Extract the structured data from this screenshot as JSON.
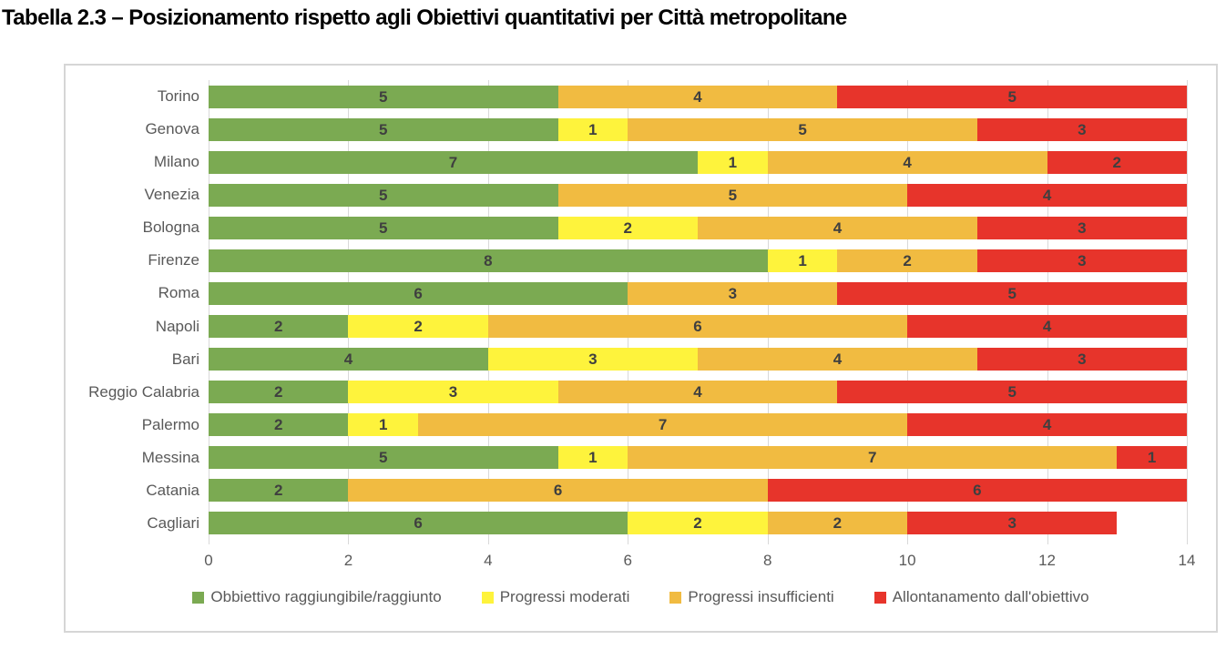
{
  "title": "Tabella 2.3 – Posizionamento rispetto agli Obiettivi quantitativi per Città metropolitane",
  "colors": {
    "green": "#7BAA52",
    "yellow": "#FEF33C",
    "orange": "#F1BB41",
    "red": "#E7342B",
    "grid": "#D9D9D9",
    "box_border": "#D6D6D6",
    "axis_text": "#595959",
    "bar_label": "#3F3F3F"
  },
  "chart_data": {
    "type": "bar",
    "orientation": "horizontal-stacked",
    "title": "Tabella 2.3 – Posizionamento rispetto agli Obiettivi quantitativi per Città metropolitane",
    "categories": [
      "Torino",
      "Genova",
      "Milano",
      "Venezia",
      "Bologna",
      "Firenze",
      "Roma",
      "Napoli",
      "Bari",
      "Reggio Calabria",
      "Palermo",
      "Messina",
      "Catania",
      "Cagliari"
    ],
    "series": [
      {
        "name": "Obbiettivo raggiungibile/raggiunto",
        "color": "#7BAA52",
        "values": [
          5,
          5,
          7,
          5,
          5,
          8,
          6,
          2,
          4,
          2,
          2,
          5,
          2,
          6
        ]
      },
      {
        "name": "Progressi moderati",
        "color": "#FEF33C",
        "values": [
          0,
          1,
          1,
          0,
          2,
          1,
          0,
          2,
          3,
          3,
          1,
          1,
          0,
          2
        ]
      },
      {
        "name": "Progressi insufficienti",
        "color": "#F1BB41",
        "values": [
          4,
          5,
          4,
          5,
          4,
          2,
          3,
          6,
          4,
          4,
          7,
          7,
          6,
          2
        ]
      },
      {
        "name": "Allontanamento dall'obiettivo",
        "color": "#E7342B",
        "values": [
          5,
          3,
          2,
          4,
          3,
          3,
          5,
          4,
          3,
          5,
          4,
          1,
          6,
          3
        ]
      }
    ],
    "totals": [
      14,
      14,
      14,
      14,
      14,
      14,
      14,
      14,
      14,
      14,
      14,
      14,
      14,
      13
    ],
    "xlim": [
      0,
      14
    ],
    "xticks": [
      0,
      2,
      4,
      6,
      8,
      10,
      12,
      14
    ],
    "grid": true,
    "legend_position": "bottom",
    "data_labels": "shown inside segments, zero values hidden"
  }
}
